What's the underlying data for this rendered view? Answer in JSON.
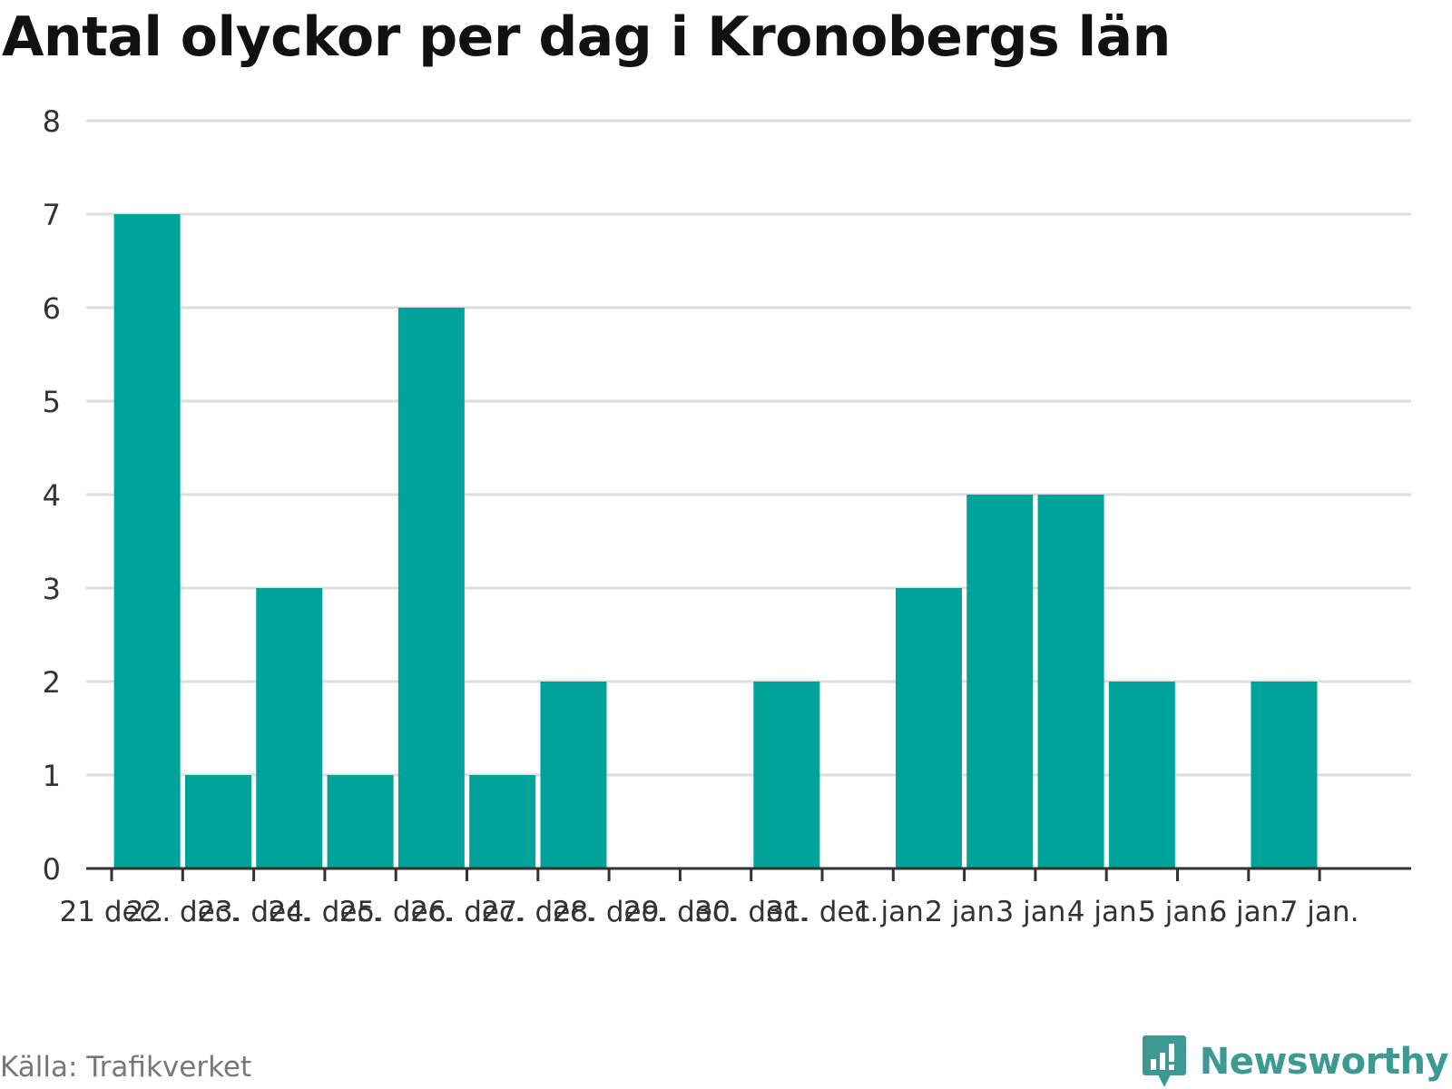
{
  "title": "Antal olyckor per dag i Kronobergs län",
  "source": "Källa: Trafikverket",
  "brand": "Newsworthy",
  "colors": {
    "bar": "#00a39a",
    "grid": "#dddddd",
    "axis": "#333333",
    "brand": "#3d9a92"
  },
  "chart_data": {
    "type": "bar",
    "title": "Antal olyckor per dag i Kronobergs län",
    "categories": [
      "21 dec.",
      "22. dec.",
      "23. dec.",
      "24. dec.",
      "25. dec.",
      "26. dec.",
      "27. dec.",
      "28. dec.",
      "29. dec.",
      "30. dec.",
      "31. dec.",
      "1 jan.",
      "2 jan.",
      "3 jan.",
      "4 jan.",
      "5 jan.",
      "6 jan.",
      "7 jan."
    ],
    "values": [
      7,
      1,
      3,
      1,
      6,
      1,
      2,
      0,
      0,
      2,
      0,
      3,
      4,
      4,
      2,
      0,
      2,
      null
    ],
    "ylim": [
      0,
      8
    ],
    "yticks": [
      0,
      1,
      2,
      3,
      4,
      5,
      6,
      7,
      8
    ],
    "grid": true,
    "xlabel": "",
    "ylabel": ""
  }
}
